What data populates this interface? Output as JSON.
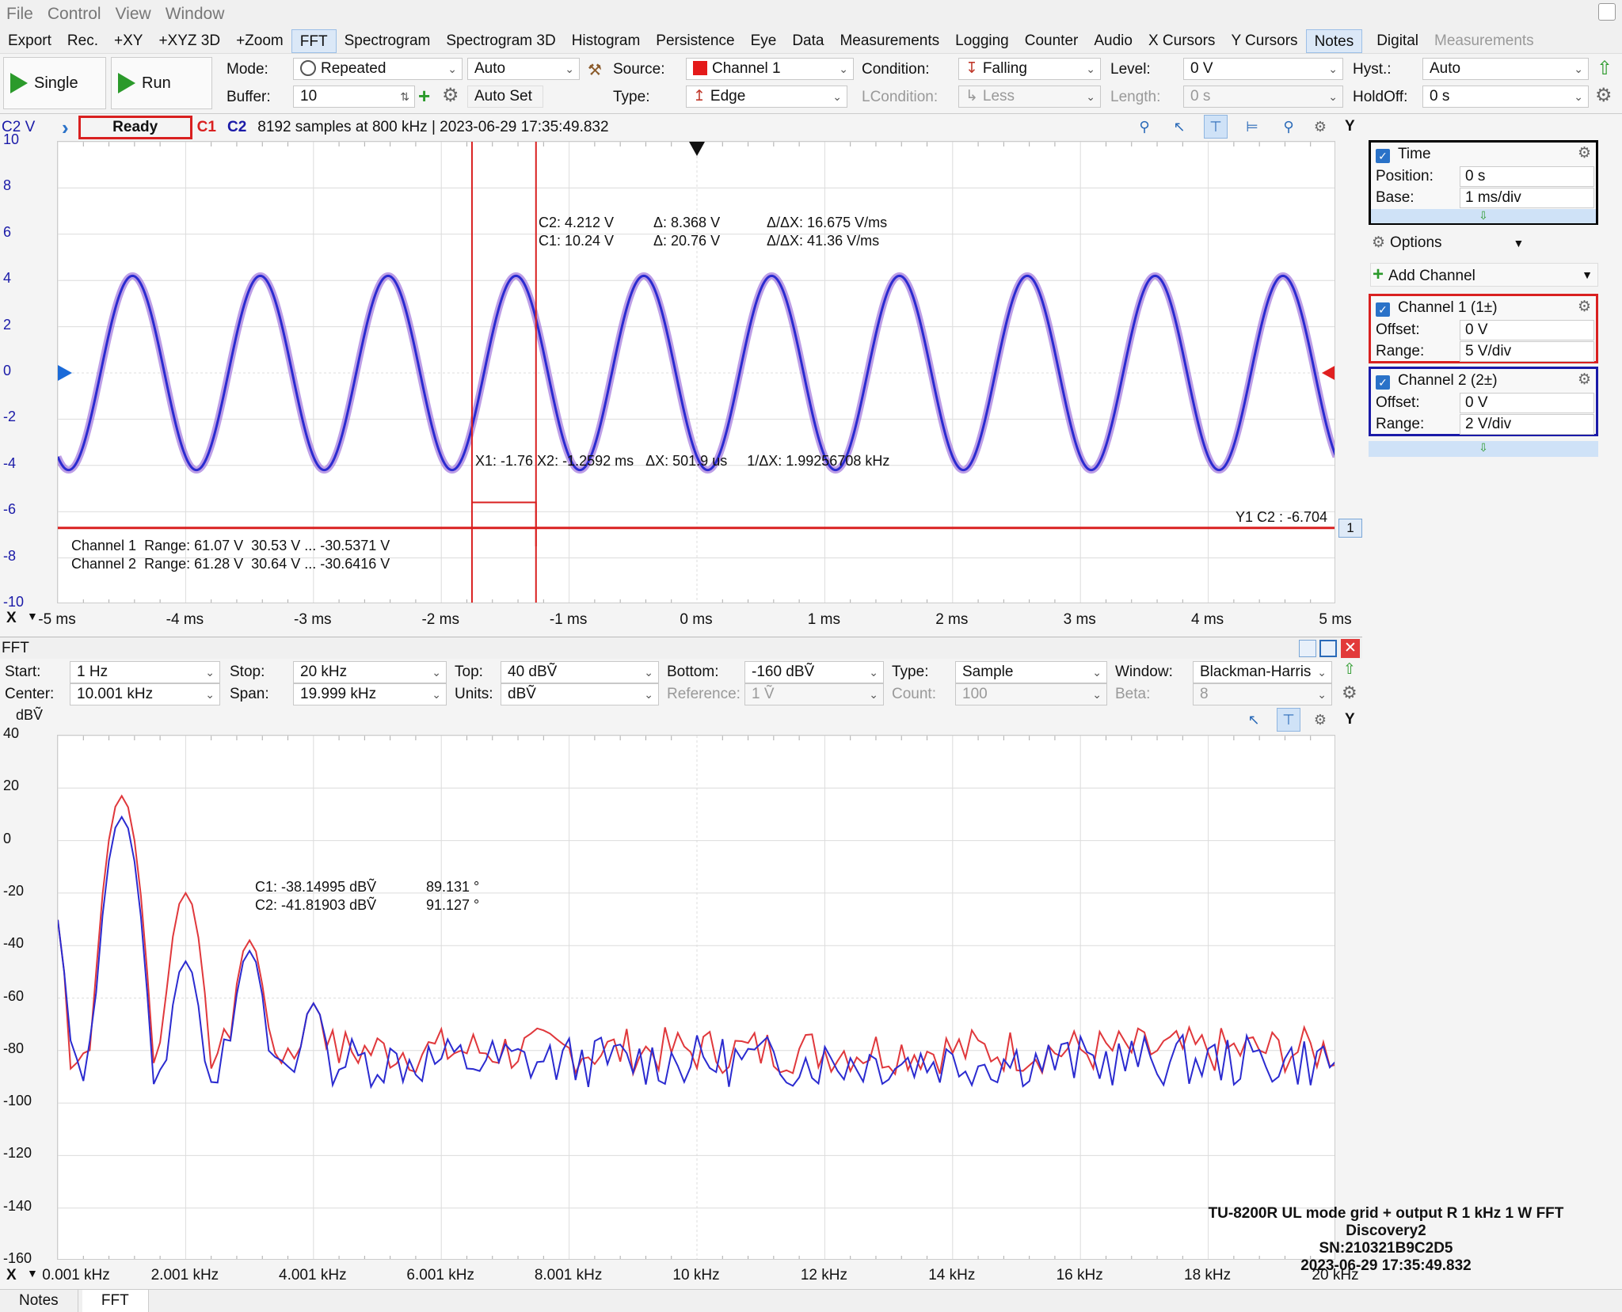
{
  "menu": [
    "File",
    "Control",
    "View",
    "Window"
  ],
  "toolbar": [
    {
      "label": "Export",
      "state": "normal"
    },
    {
      "label": "Rec.",
      "state": "normal"
    },
    {
      "label": "+XY",
      "state": "normal"
    },
    {
      "label": "+XYZ 3D",
      "state": "normal"
    },
    {
      "label": "+Zoom",
      "state": "normal"
    },
    {
      "label": "FFT",
      "state": "active"
    },
    {
      "label": "Spectrogram",
      "state": "normal"
    },
    {
      "label": "Spectrogram 3D",
      "state": "normal"
    },
    {
      "label": "Histogram",
      "state": "normal"
    },
    {
      "label": "Persistence",
      "state": "normal"
    },
    {
      "label": "Eye",
      "state": "normal"
    },
    {
      "label": "Data",
      "state": "normal"
    },
    {
      "label": "Measurements",
      "state": "normal"
    },
    {
      "label": "Logging",
      "state": "normal"
    },
    {
      "label": "Counter",
      "state": "normal"
    },
    {
      "label": "Audio",
      "state": "normal"
    },
    {
      "label": "X Cursors",
      "state": "normal"
    },
    {
      "label": "Y Cursors",
      "state": "normal"
    },
    {
      "label": "Notes",
      "state": "active"
    },
    {
      "label": "Digital",
      "state": "normal"
    },
    {
      "label": "Measurements",
      "state": "dim"
    }
  ],
  "controls": {
    "single": "Single",
    "run": "Run",
    "mode_label": "Mode:",
    "mode_value": "Repeated",
    "mode_auto": "Auto",
    "buffer_label": "Buffer:",
    "buffer_value": "10",
    "autoset": "Auto Set",
    "source_label": "Source:",
    "source_value": "Channel 1",
    "type_label": "Type:",
    "type_value": "Edge",
    "condition_label": "Condition:",
    "condition_value": "Falling",
    "lcondition_label": "LCondition:",
    "lcondition_value": "Less",
    "level_label": "Level:",
    "level_value": "0 V",
    "length_label": "Length:",
    "length_value": "0 s",
    "hyst_label": "Hyst.:",
    "hyst_value": "Auto",
    "holdoff_label": "HoldOff:",
    "holdoff_value": "0 s"
  },
  "status": {
    "yaxis": "C2 V",
    "state": "Ready",
    "c1": "C1",
    "c2": "C2",
    "info": "8192 samples at 800 kHz | 2023-06-29 17:35:49.832",
    "y_button": "Y"
  },
  "time_plot": {
    "y_ticks": [
      "10",
      "8",
      "6",
      "4",
      "2",
      "0",
      "-2",
      "-4",
      "-6",
      "-8",
      "-10"
    ],
    "x_ticks": [
      "-5 ms",
      "-4 ms",
      "-3 ms",
      "-2 ms",
      "-1 ms",
      "0 ms",
      "1 ms",
      "2 ms",
      "3 ms",
      "4 ms",
      "5 ms"
    ],
    "x_label": "X",
    "cursor_info_1": "C2: 4.212 V",
    "cursor_info_2": "C1: 10.24 V",
    "delta_1": "Δ: 8.368 V",
    "delta_2": "Δ: 20.76 V",
    "slope_1": "Δ/ΔX: 16.675 V/ms",
    "slope_2": "Δ/ΔX: 41.36 V/ms",
    "xcursor_info": "X1: -1.76 X2: -1.2592 ms   ΔX: 501.9 us     1/ΔX: 1.99256708 kHz",
    "ycursor_info": "Y1 C2 : -6.704",
    "ycursor_tag": "1",
    "range_1": "Channel 1  Range: 61.07 V  30.53 V ... -30.5371 V",
    "range_2": "Channel 2  Range: 61.28 V  30.64 V ... -30.6416 V",
    "colors": {
      "c1": "#e0383c",
      "c2": "#2b2bd0"
    }
  },
  "panel": {
    "time_title": "Time",
    "position_label": "Position:",
    "position_value": "0 s",
    "base_label": "Base:",
    "base_value": "1 ms/div",
    "options": "Options",
    "add_channel": "Add Channel",
    "ch1_title": "Channel 1 (1±)",
    "ch1_offset_label": "Offset:",
    "ch1_offset": "0 V",
    "ch1_range_label": "Range:",
    "ch1_range": "5 V/div",
    "ch2_title": "Channel 2 (2±)",
    "ch2_offset_label": "Offset:",
    "ch2_offset": "0 V",
    "ch2_range_label": "Range:",
    "ch2_range": "2 V/div"
  },
  "fft": {
    "title": "FFT",
    "start_label": "Start:",
    "start": "1 Hz",
    "center_label": "Center:",
    "center": "10.001 kHz",
    "stop_label": "Stop:",
    "stop": "20 kHz",
    "span_label": "Span:",
    "span": "19.999 kHz",
    "top_label": "Top:",
    "top": "40 dBṼ",
    "units_label": "Units:",
    "units": "dBṼ",
    "bottom_label": "Bottom:",
    "bottom": "-160 dBṼ",
    "reference_label": "Reference:",
    "reference": "1 Ṽ",
    "type_label": "Type:",
    "type": "Sample",
    "count_label": "Count:",
    "count": "100",
    "window_label": "Window:",
    "window": "Blackman-Harris",
    "beta_label": "Beta:",
    "beta": "8",
    "y_unit": "dBṼ",
    "y_ticks": [
      "40",
      "20",
      "0",
      "-20",
      "-40",
      "-60",
      "-80",
      "-100",
      "-120",
      "-140",
      "-160"
    ],
    "x_ticks": [
      "0.001 kHz",
      "2.001 kHz",
      "4.001 kHz",
      "6.001 kHz",
      "8.001 kHz",
      "10 kHz",
      "12 kHz",
      "14 kHz",
      "16 kHz",
      "18 kHz",
      "20 kHz"
    ],
    "x_label": "X",
    "y_button": "Y",
    "c1_readout": "C1: -38.14995 dBṼ",
    "c1_phase": "89.131 °",
    "c2_readout": "C2: -41.81903 dBṼ",
    "c2_phase": "91.127 °",
    "note_1": "TU-8200R UL mode grid + output R 1 kHz 1 W FFT",
    "note_2": "Discovery2",
    "note_3": "SN:210321B9C2D5",
    "note_4": "2023-06-29 17:35:49.832"
  },
  "bottom_tabs": [
    "Notes",
    "FFT"
  ]
}
